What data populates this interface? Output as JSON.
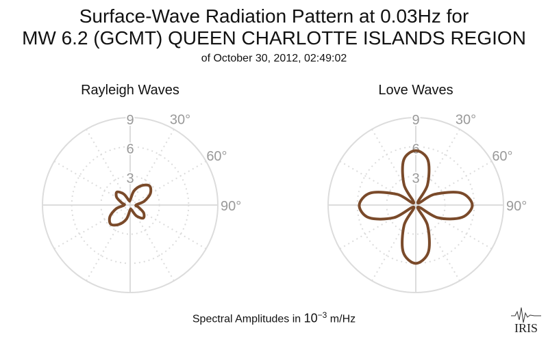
{
  "title": {
    "line1": "Surface-Wave Radiation Pattern at 0.03Hz for",
    "line2": "MW 6.2 (GCMT) QUEEN CHARLOTTE ISLANDS REGION",
    "subtitle": "of October 30, 2012, 02:49:02"
  },
  "footer": {
    "prefix": "Spectral Amplitudes in ",
    "base": "10",
    "exponent": "−3",
    "unit": " m/Hz"
  },
  "logo_text": "IRIS",
  "colors": {
    "curve": "#7a4a2a",
    "grid": "#dcdcdc",
    "label": "#999999"
  },
  "chart_data": [
    {
      "type": "polar",
      "title": "Rayleigh Waves",
      "r_ticks": [
        3,
        6,
        9
      ],
      "rlim": [
        0,
        9
      ],
      "angle_ticks_deg": [
        30,
        60,
        90
      ],
      "angle_labels": [
        "30°",
        "60°",
        "90°"
      ],
      "series": [
        {
          "theta_deg": [
            0,
            15,
            30,
            45,
            60,
            75,
            90,
            105,
            120,
            135,
            150,
            165,
            180,
            195,
            210,
            225,
            240,
            255,
            270,
            285,
            300,
            315,
            330,
            345
          ],
          "r": [
            0.5,
            1.5,
            2.3,
            2.8,
            2.4,
            1.5,
            0.6,
            0.9,
            1.6,
            1.9,
            1.3,
            0.5,
            0.5,
            1.5,
            2.3,
            2.8,
            2.4,
            1.5,
            0.6,
            0.9,
            1.6,
            1.9,
            1.3,
            0.5
          ]
        }
      ]
    },
    {
      "type": "polar",
      "title": "Love Waves",
      "r_ticks": [
        3,
        6,
        9
      ],
      "rlim": [
        0,
        9
      ],
      "angle_ticks_deg": [
        30,
        60,
        90
      ],
      "angle_labels": [
        "30°",
        "60°",
        "90°"
      ],
      "series": [
        {
          "theta_deg": [
            0,
            15,
            30,
            45,
            60,
            75,
            90,
            105,
            120,
            135,
            150,
            165,
            180,
            195,
            210,
            225,
            240,
            255,
            270,
            285,
            300,
            315,
            330,
            345
          ],
          "r": [
            5.6,
            4.8,
            2.4,
            0.3,
            2.2,
            4.8,
            5.8,
            4.9,
            2.6,
            0.3,
            2.4,
            5.0,
            6.0,
            5.0,
            2.4,
            0.3,
            2.6,
            5.0,
            5.8,
            4.8,
            2.2,
            0.3,
            2.4,
            4.8
          ]
        }
      ]
    }
  ]
}
